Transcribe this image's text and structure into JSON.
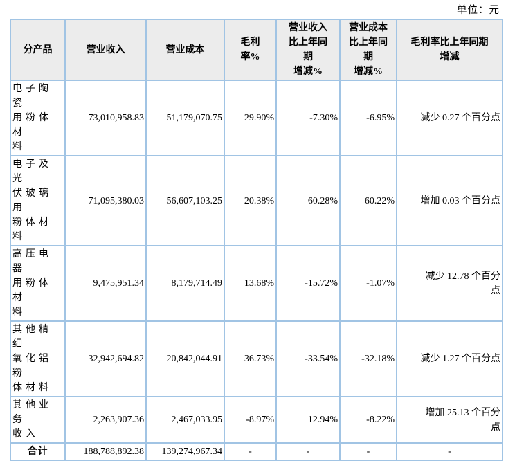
{
  "colors": {
    "border": "#a1c4e4",
    "header_bg": "#ececec",
    "text": "#000000",
    "page_bg": "#ffffff"
  },
  "unit_note": "单位：元",
  "table": {
    "columns": [
      {
        "label": "分产品"
      },
      {
        "label": "营业收入"
      },
      {
        "label": "营业成本"
      },
      {
        "label": "毛利\n率%"
      },
      {
        "label": "营业收入\n比上年同\n期\n增减%"
      },
      {
        "label": "营业成本\n比上年同\n期\n增减%"
      },
      {
        "label": "毛利率比上年同期\n增减"
      }
    ],
    "rows": [
      {
        "cells": [
          "电子陶瓷\n用粉体材\n料",
          "73,010,958.83",
          "51,179,070.75",
          "29.90%",
          "-7.30%",
          "-6.95%",
          "减少 0.27 个百分点"
        ]
      },
      {
        "cells": [
          "电子及光\n伏玻璃用\n粉体材料",
          "71,095,380.03",
          "56,607,103.25",
          "20.38%",
          "60.28%",
          "60.22%",
          "增加 0.03 个百分点"
        ]
      },
      {
        "cells": [
          "高压电器\n用粉体材\n料",
          "9,475,951.34",
          "8,179,714.49",
          "13.68%",
          "-15.72%",
          "-1.07%",
          "减少 12.78 个百分\n点"
        ]
      },
      {
        "cells": [
          "其他精细\n氧化铝粉\n体材料",
          "32,942,694.82",
          "20,842,044.91",
          "36.73%",
          "-33.54%",
          "-32.18%",
          "减少 1.27 个百分点"
        ]
      },
      {
        "cells": [
          "其他业务\n收入",
          "2,263,907.36",
          "2,467,033.95",
          "-8.97%",
          "12.94%",
          "-8.22%",
          "增加 25.13 个百分\n点"
        ]
      }
    ],
    "total_row": {
      "cells": [
        "合计",
        "188,788,892.38",
        "139,274,967.34",
        "-",
        "-",
        "-",
        "-"
      ]
    }
  }
}
